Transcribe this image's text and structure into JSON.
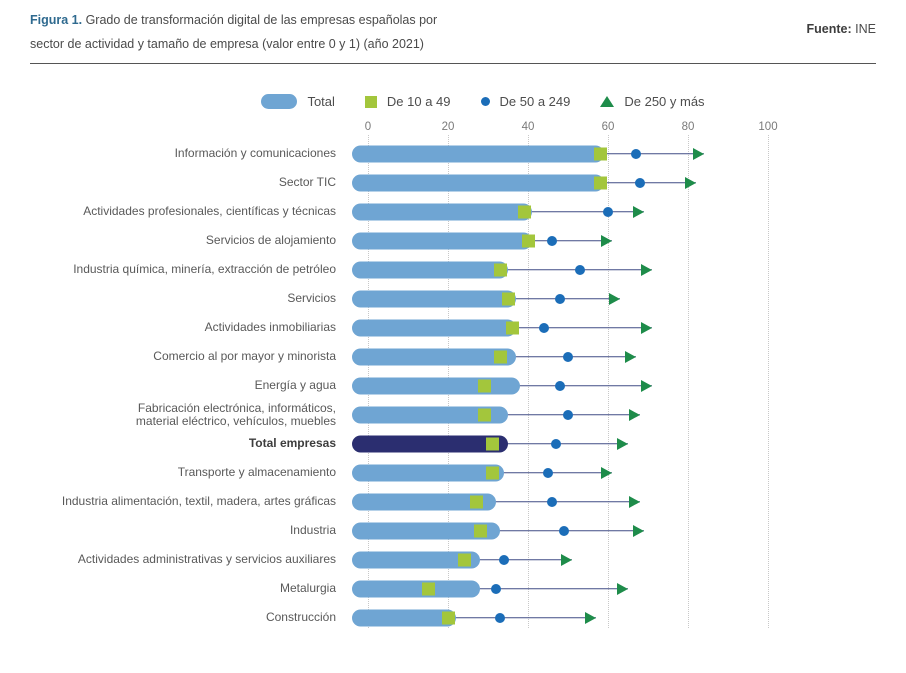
{
  "header": {
    "figure_label": "Figura 1.",
    "title_line1": "Grado de transformación digital de las empresas españolas por",
    "title_line2": "sector de actividad y tamaño de empresa (valor entre 0 y 1) (año 2021)",
    "source_label": "Fuente:",
    "source_value": "INE"
  },
  "legend": [
    {
      "label": "Total",
      "marker": "pill"
    },
    {
      "label": "De 10 a 49",
      "marker": "square"
    },
    {
      "label": "De 50 a 249",
      "marker": "circle"
    },
    {
      "label": "De 250 y más",
      "marker": "triangle"
    }
  ],
  "colors": {
    "title_accent": "#2f6a8f",
    "bar_total": "#6fa5d3",
    "bar_total_highlight": "#2b2e70",
    "marker_10_49": "#a3c63c",
    "marker_50_249": "#1b6db8",
    "marker_250_plus": "#1e8c4a",
    "range_line": "#414d85",
    "gridline": "#c8c8c8"
  },
  "chart_data": {
    "type": "bar",
    "orientation": "horizontal",
    "title": "Grado de transformación digital de las empresas españolas por sector de actividad y tamaño de empresa (valor entre 0 y 1) (año 2021)",
    "xlabel": "",
    "ylabel": "",
    "xlim": [
      0,
      100
    ],
    "x_ticks": [
      0,
      20,
      40,
      60,
      80,
      100
    ],
    "grid": "vertical-dotted",
    "legend_position": "top",
    "axis_position": "top",
    "bold_category_index": 10,
    "highlight_category": "Total empresas",
    "categories": [
      "Información y comunicaciones",
      "Sector TIC",
      "Actividades profesionales, científicas y técnicas",
      "Servicios de alojamiento",
      "Industria química, minería, extracción de petróleo",
      "Servicios",
      "Actividades inmobiliarias",
      "Comercio al por mayor y minorista",
      "Energía y agua",
      [
        "Fabricación electrónica, informáticos,",
        "material eléctrico, vehículos, muebles"
      ],
      "Total empresas",
      "Transporte y almacenamiento",
      "Industria alimentación, textil, madera, artes gráficas",
      "Industria",
      "Actividades administrativas y servicios auxiliares",
      "Metalurgia",
      "Construcción"
    ],
    "series": [
      {
        "name": "Total",
        "marker": "bar",
        "values": [
          63,
          63,
          45,
          45,
          39,
          41,
          41,
          41,
          42,
          39,
          39,
          38,
          36,
          37,
          32,
          32,
          26
        ]
      },
      {
        "name": "De 10 a 49",
        "marker": "square",
        "values": [
          62,
          62,
          43,
          44,
          37,
          39,
          40,
          37,
          33,
          33,
          35,
          35,
          31,
          32,
          28,
          19,
          24
        ]
      },
      {
        "name": "De 50 a 249",
        "marker": "circle",
        "values": [
          71,
          72,
          64,
          50,
          57,
          52,
          48,
          54,
          52,
          54,
          51,
          49,
          50,
          53,
          38,
          36,
          37
        ]
      },
      {
        "name": "De 250 y más",
        "marker": "arrow",
        "values": [
          88,
          86,
          73,
          65,
          75,
          67,
          75,
          71,
          75,
          72,
          69,
          65,
          72,
          73,
          55,
          69,
          61
        ]
      }
    ]
  }
}
